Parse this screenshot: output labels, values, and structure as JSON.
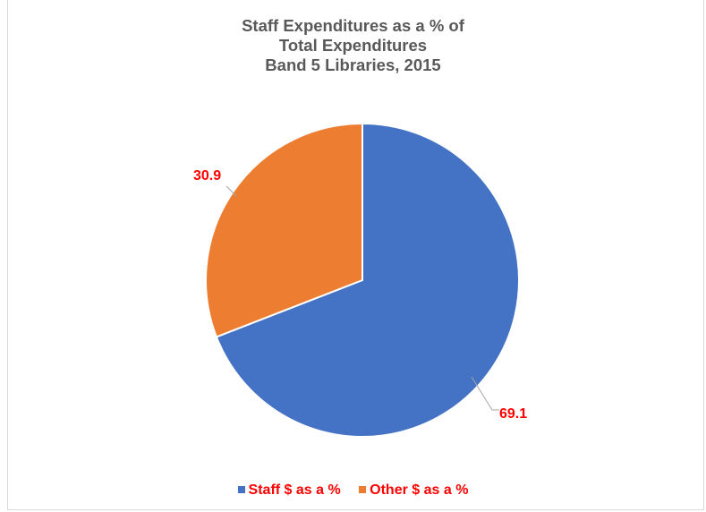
{
  "chart_data": {
    "type": "pie",
    "title": [
      "Staff Expenditures as a % of",
      "Total Expenditures",
      "Band 5 Libraries, 2015"
    ],
    "categories": [
      "Staff $ as a %",
      "Other $ as a %"
    ],
    "values": [
      69.1,
      30.9
    ],
    "data_labels": [
      "69.1",
      "30.9"
    ],
    "colors": [
      "#4472c4",
      "#ed7d31"
    ],
    "label_color": "#ff0000",
    "legend_position": "bottom",
    "start_angle": "12 o'clock, clockwise"
  }
}
